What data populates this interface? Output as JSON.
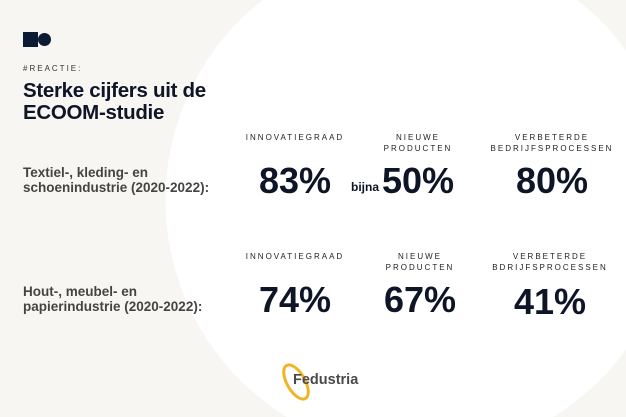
{
  "tag": "#REACTIE:",
  "title_line1": "Sterke cijfers uit de",
  "title_line2": "ECOOM-studie",
  "rows": [
    {
      "label_line1": "Textiel-, kleding- en",
      "label_line2": "schoenindustrie (2020-2022):",
      "stats": [
        {
          "cap1": "",
          "cap2": "INNOVATIEGRAAD",
          "prefix": "",
          "value": "83%"
        },
        {
          "cap1": "NIEUWE",
          "cap2": "PRODUCTEN",
          "prefix": "bijna",
          "value": "50%"
        },
        {
          "cap1": "VERBETERDE",
          "cap2": "BEDRIJFSPROCESSEN",
          "prefix": "",
          "value": "80%"
        }
      ]
    },
    {
      "label_line1": "Hout-, meubel- en",
      "label_line2": "papierindustrie (2020-2022):",
      "stats": [
        {
          "cap1": "",
          "cap2": "INNOVATIEGRAAD",
          "prefix": "",
          "value": "74%"
        },
        {
          "cap1": "NIEUWE",
          "cap2": "PRODUCTEN",
          "prefix": "",
          "value": "67%"
        },
        {
          "cap1": "VERBETERDE",
          "cap2": "BDRIJFSPROCESSEN",
          "prefix": "",
          "value": "41%"
        }
      ]
    }
  ],
  "brand": "Fedustria",
  "colors": {
    "navy": "#0d1526",
    "accent": "#f0b429",
    "background": "#f7f6f2"
  }
}
